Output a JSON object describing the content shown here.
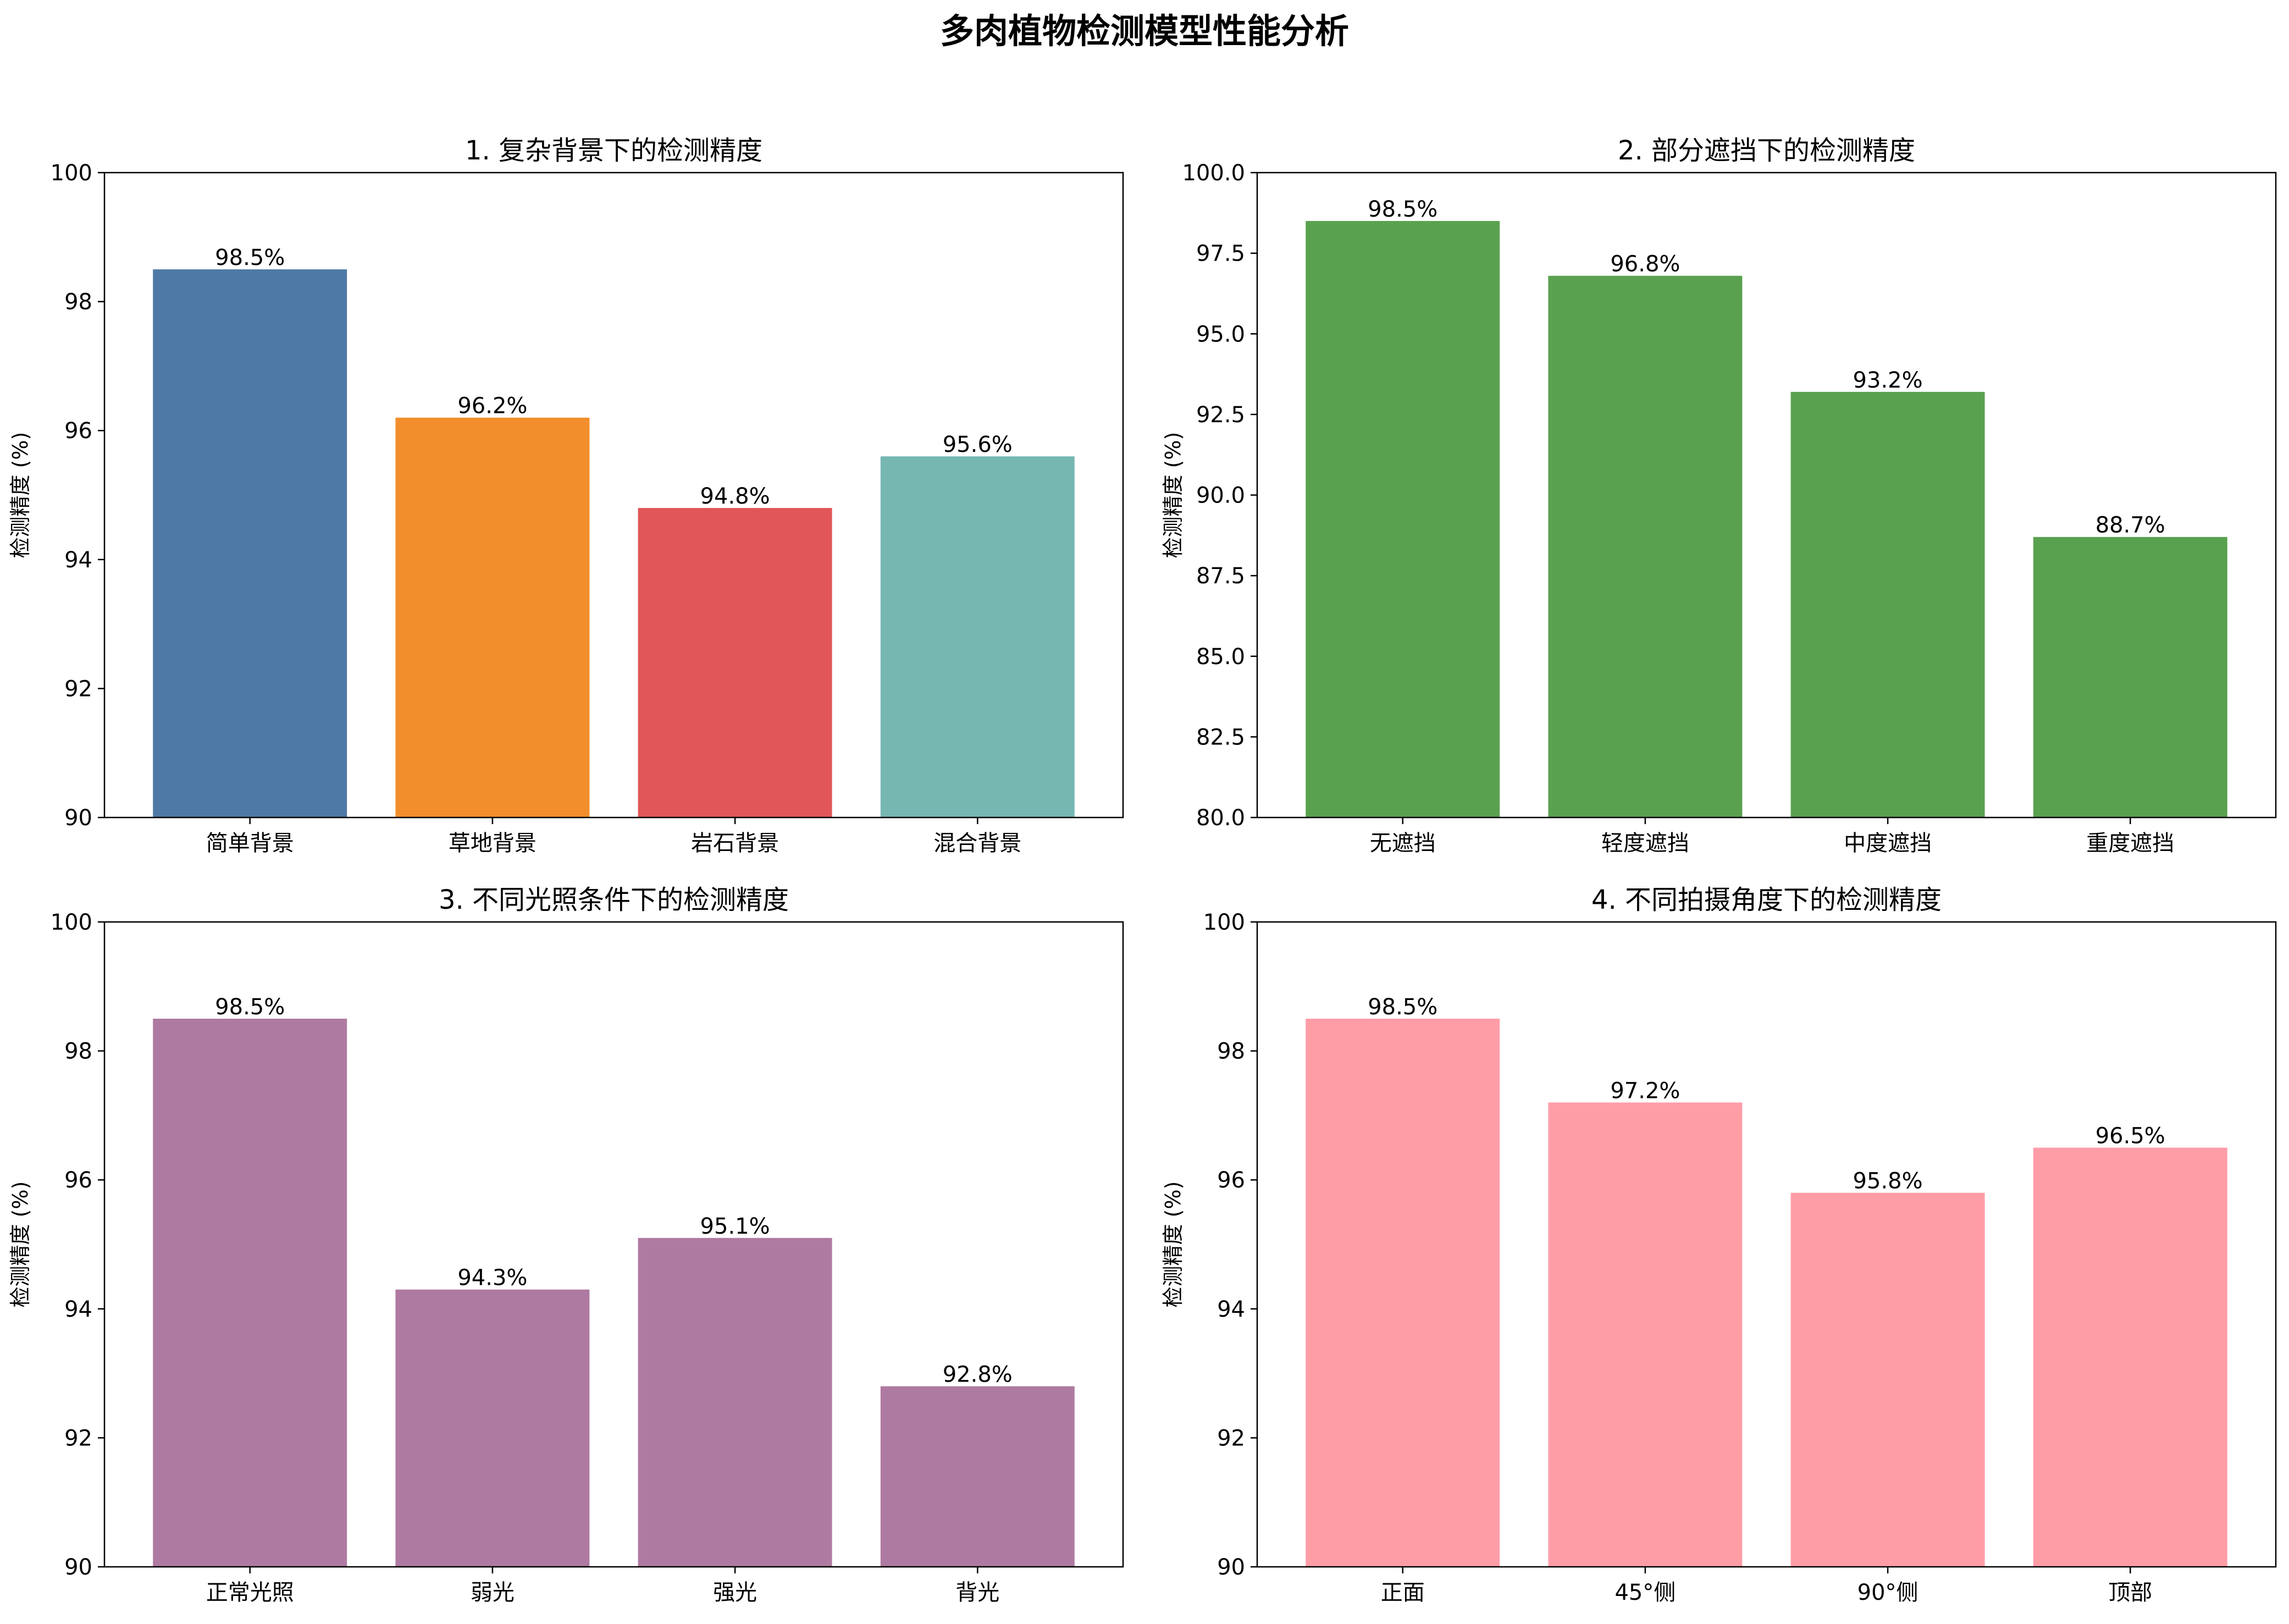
{
  "suptitle": "多肉植物检测模型性能分析",
  "chart_data": [
    {
      "type": "bar",
      "title": "1. 复杂背景下的检测精度",
      "xlabel": "",
      "ylabel": "检测精度 (%)",
      "categories": [
        "简单背景",
        "草地背景",
        "岩石背景",
        "混合背景"
      ],
      "values": [
        98.5,
        96.2,
        94.8,
        95.6
      ],
      "value_labels": [
        "98.5%",
        "96.2%",
        "94.8%",
        "95.6%"
      ],
      "colors": [
        "#4e79a7",
        "#f28e2b",
        "#e15759",
        "#76b7b2"
      ],
      "ylim": [
        90,
        100
      ],
      "yticks": [
        90,
        92,
        94,
        96,
        98,
        100
      ],
      "ytick_labels": [
        "90",
        "92",
        "94",
        "96",
        "98",
        "100"
      ],
      "grid": false
    },
    {
      "type": "bar",
      "title": "2. 部分遮挡下的检测精度",
      "xlabel": "",
      "ylabel": "检测精度 (%)",
      "categories": [
        "无遮挡",
        "轻度遮挡",
        "中度遮挡",
        "重度遮挡"
      ],
      "values": [
        98.5,
        96.8,
        93.2,
        88.7
      ],
      "value_labels": [
        "98.5%",
        "96.8%",
        "93.2%",
        "88.7%"
      ],
      "colors": [
        "#59a14f",
        "#59a14f",
        "#59a14f",
        "#59a14f"
      ],
      "ylim": [
        80,
        100
      ],
      "yticks": [
        80,
        82.5,
        85,
        87.5,
        90,
        92.5,
        95,
        97.5,
        100
      ],
      "ytick_labels": [
        "80.0",
        "82.5",
        "85.0",
        "87.5",
        "90.0",
        "92.5",
        "95.0",
        "97.5",
        "100.0"
      ],
      "grid": false
    },
    {
      "type": "bar",
      "title": "3. 不同光照条件下的检测精度",
      "xlabel": "",
      "ylabel": "检测精度 (%)",
      "categories": [
        "正常光照",
        "弱光",
        "强光",
        "背光"
      ],
      "values": [
        98.5,
        94.3,
        95.1,
        92.8
      ],
      "value_labels": [
        "98.5%",
        "94.3%",
        "95.1%",
        "92.8%"
      ],
      "colors": [
        "#af7aa1",
        "#af7aa1",
        "#af7aa1",
        "#af7aa1"
      ],
      "ylim": [
        90,
        100
      ],
      "yticks": [
        90,
        92,
        94,
        96,
        98,
        100
      ],
      "ytick_labels": [
        "90",
        "92",
        "94",
        "96",
        "98",
        "100"
      ],
      "grid": false
    },
    {
      "type": "bar",
      "title": "4. 不同拍摄角度下的检测精度",
      "xlabel": "",
      "ylabel": "检测精度 (%)",
      "categories": [
        "正面",
        "45°侧",
        "90°侧",
        "顶部"
      ],
      "values": [
        98.5,
        97.2,
        95.8,
        96.5
      ],
      "value_labels": [
        "98.5%",
        "97.2%",
        "95.8%",
        "96.5%"
      ],
      "colors": [
        "#ff9da7",
        "#ff9da7",
        "#ff9da7",
        "#ff9da7"
      ],
      "ylim": [
        90,
        100
      ],
      "yticks": [
        90,
        92,
        94,
        96,
        98,
        100
      ],
      "ytick_labels": [
        "90",
        "92",
        "94",
        "96",
        "98",
        "100"
      ],
      "grid": false
    }
  ]
}
